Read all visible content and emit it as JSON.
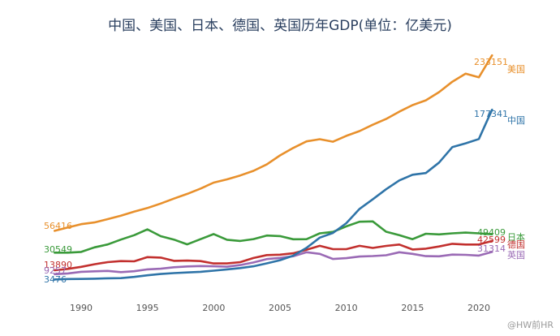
{
  "chart_data": {
    "type": "line",
    "title": "中国、美国、日本、德国、英国历年GDP(单位：亿美元)",
    "xlabel": "",
    "ylabel": "",
    "xlim": [
      1987,
      2022
    ],
    "ylim": [
      0,
      240000
    ],
    "x_ticks": [
      "1990",
      "1995",
      "2000",
      "2005",
      "2010",
      "2015",
      "2020"
    ],
    "x": [
      1988,
      1989,
      1990,
      1991,
      1992,
      1993,
      1994,
      1995,
      1996,
      1997,
      1998,
      1999,
      2000,
      2001,
      2002,
      2003,
      2004,
      2005,
      2006,
      2007,
      2008,
      2009,
      2010,
      2011,
      2012,
      2013,
      2014,
      2015,
      2016,
      2017,
      2018,
      2019,
      2020,
      2021
    ],
    "series": [
      {
        "name": "美国",
        "color": "#e8902c",
        "start_label": "56416",
        "end_label": "233151",
        "values": [
          53000,
          56416,
          59800,
          61600,
          65000,
          68600,
          72700,
          76400,
          81000,
          86100,
          90900,
          96300,
          102500,
          105800,
          109800,
          114600,
          121200,
          130400,
          138100,
          144800,
          147100,
          144500,
          150500,
          155400,
          161900,
          167800,
          175300,
          182100,
          187000,
          195400,
          206100,
          214300,
          210600,
          233151
        ]
      },
      {
        "name": "中国",
        "color": "#2f74a8",
        "start_label": "3476",
        "end_label": "177341",
        "values": [
          3100,
          3476,
          3609,
          3833,
          4269,
          4447,
          5643,
          7345,
          8637,
          9616,
          10290,
          10940,
          12110,
          13390,
          14710,
          16600,
          19550,
          22860,
          27520,
          35520,
          45980,
          50870,
          60870,
          75510,
          85320,
          95700,
          104750,
          110620,
          112330,
          123100,
          138950,
          142800,
          147230,
          177341
        ]
      },
      {
        "name": "日本",
        "color": "#3a9a3a",
        "start_label": "30549",
        "end_label": "49409",
        "values": [
          30549,
          30549,
          31330,
          36000,
          39000,
          44000,
          48500,
          54500,
          47500,
          44000,
          39100,
          44400,
          49700,
          43800,
          42600,
          44500,
          48200,
          47600,
          44300,
          44400,
          50400,
          51900,
          57600,
          62300,
          62700,
          52100,
          48600,
          44400,
          50000,
          49300,
          50400,
          51200,
          50400,
          49409
        ]
      },
      {
        "name": "德国",
        "color": "#c2302e",
        "start_label": "13890",
        "end_label": "42599",
        "values": [
          12500,
          13890,
          16000,
          18700,
          20800,
          21900,
          21700,
          26000,
          25500,
          22200,
          22400,
          21900,
          19500,
          19500,
          20800,
          25100,
          28100,
          28500,
          29900,
          33600,
          37600,
          34200,
          34200,
          37600,
          35400,
          37500,
          38900,
          33800,
          34700,
          36900,
          39700,
          38900,
          38900,
          42599
        ]
      },
      {
        "name": "英国",
        "color": "#9a6ab5",
        "start_label": "9257",
        "end_label": "31314",
        "values": [
          8500,
          9257,
          10900,
          11400,
          11800,
          10600,
          11500,
          13400,
          14100,
          15600,
          16400,
          16800,
          16600,
          16200,
          17800,
          20500,
          24000,
          25200,
          26900,
          31000,
          29300,
          24100,
          24900,
          26600,
          27100,
          27900,
          31000,
          29300,
          27000,
          26800,
          28600,
          28300,
          27600,
          31314
        ]
      }
    ]
  },
  "watermark": "@HW前HR"
}
